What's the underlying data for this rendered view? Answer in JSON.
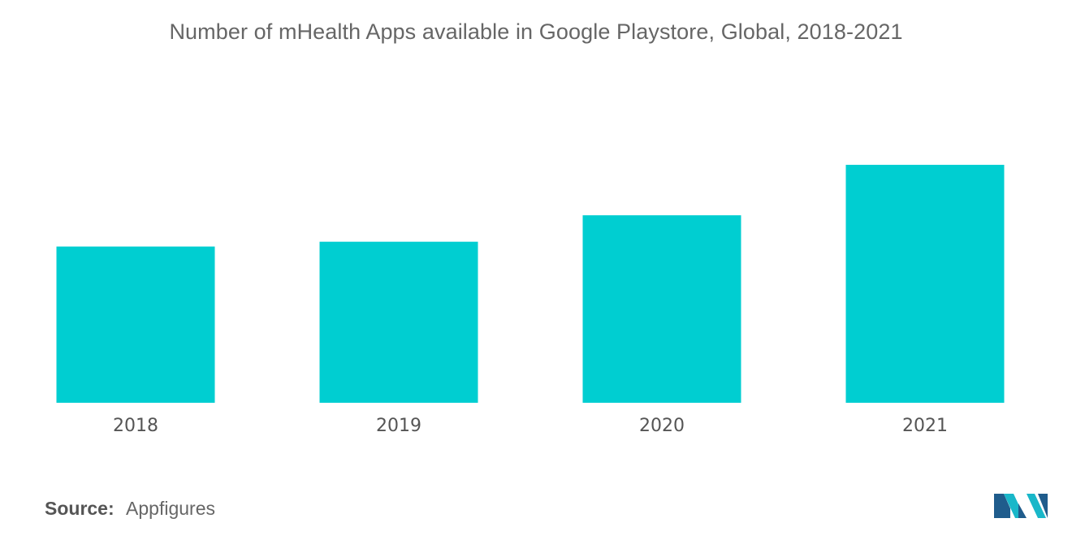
{
  "chart_data": {
    "type": "bar",
    "title": "Number of mHealth Apps available in Google Playstore, Global, 2018-2021",
    "categories": [
      "2018",
      "2019",
      "2020",
      "2021"
    ],
    "values": [
      65,
      67,
      78,
      99
    ],
    "xlabel": "",
    "ylabel": "",
    "ylim": [
      0,
      100
    ],
    "grid": false,
    "legend": "none",
    "bar_color": "#00CED1"
  },
  "source": {
    "label": "Source:",
    "value": "Appfigures"
  },
  "logo": {
    "icon": "mordor-intelligence-logo-icon",
    "colors": [
      "#1F5C8C",
      "#19B7C9"
    ]
  }
}
